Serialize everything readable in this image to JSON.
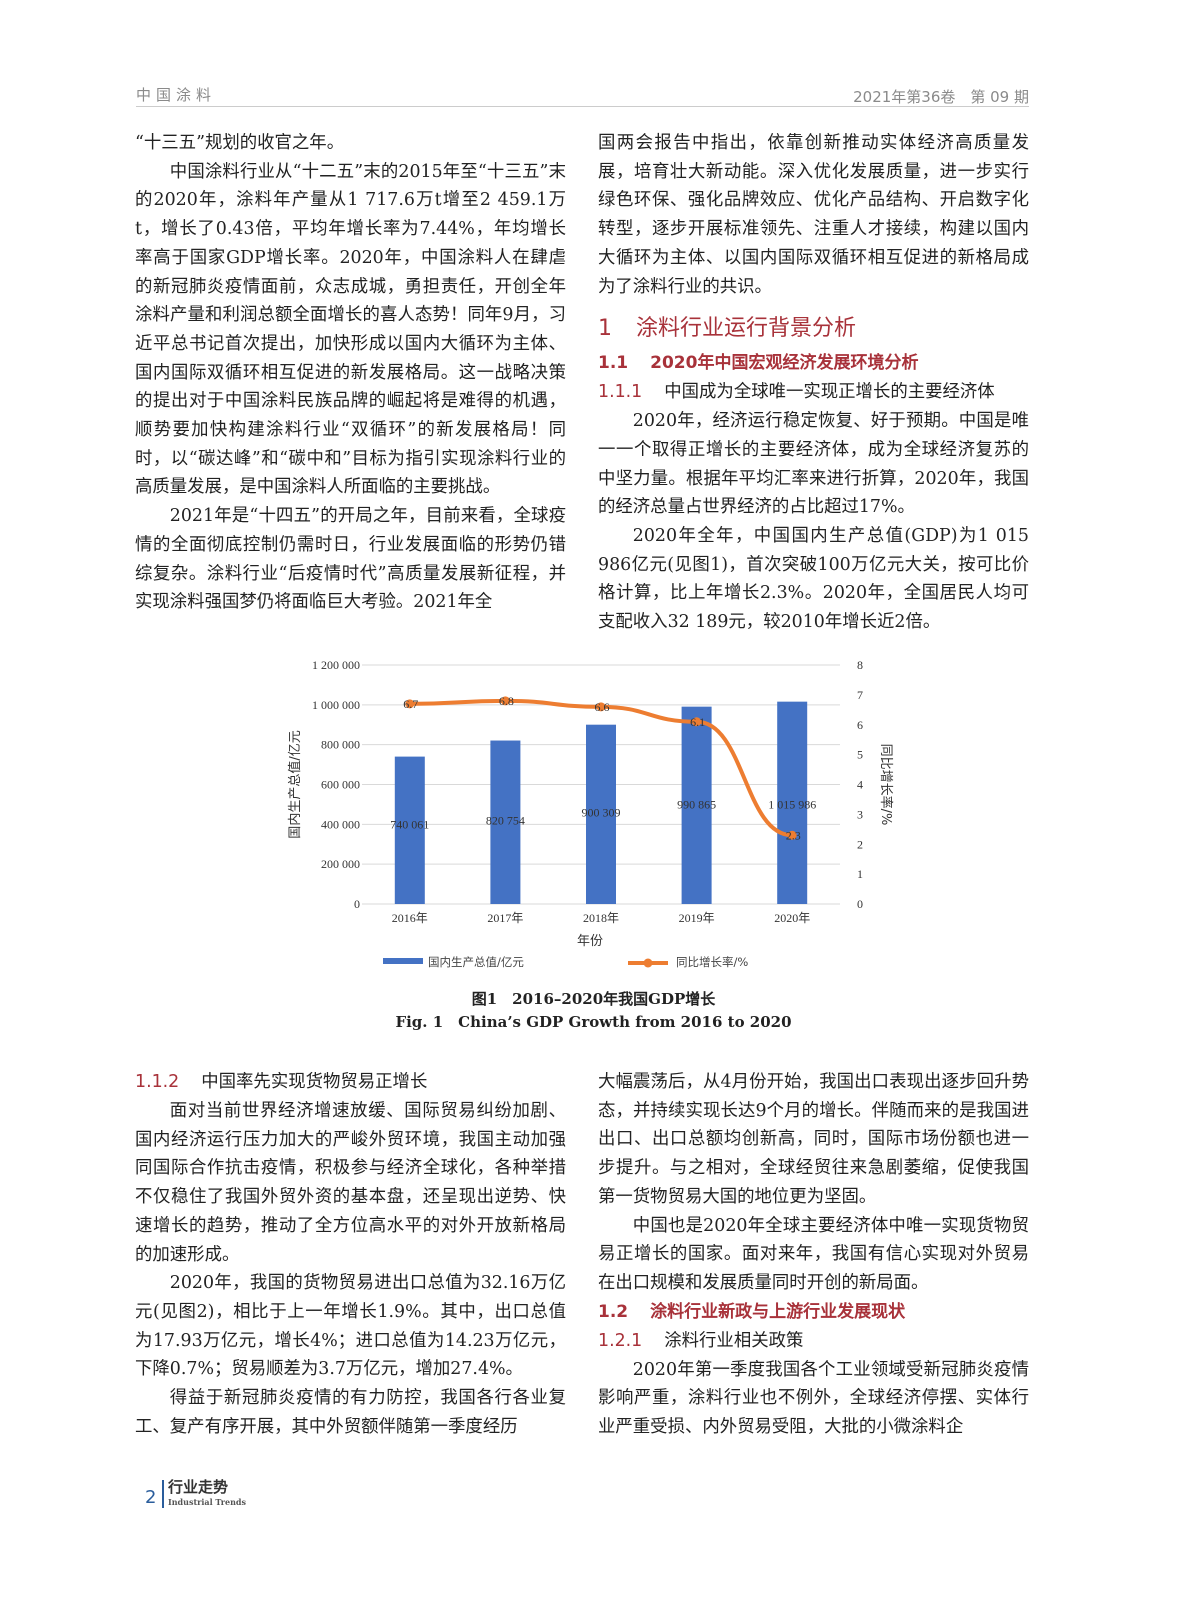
{
  "header": {
    "journal": "中国涂料",
    "issue": "2021年第36卷　第 09 期"
  },
  "top_left": [
    {
      "indent": false,
      "text": "“十三五”规划的收官之年。"
    },
    {
      "indent": true,
      "text": "中国涂料行业从“十二五”末的2015年至“十三五”末的2020年，涂料年产量从1 717.6万t增至2 459.1万t，增长了0.43倍，平均年增长率为7.44%，年均增长率高于国家GDP增长率。2020年，中国涂料人在肆虐的新冠肺炎疫情面前，众志成城，勇担责任，开创全年涂料产量和利润总额全面增长的喜人态势！同年9月，习近平总书记首次提出，加快形成以国内大循环为主体、国内国际双循环相互促进的新发展格局。这一战略决策的提出对于中国涂料民族品牌的崛起将是难得的机遇，顺势要加快构建涂料行业“双循环”的新发展格局！同时，以“碳达峰”和“碳中和”目标为指引实现涂料行业的高质量发展，是中国涂料人所面临的主要挑战。"
    },
    {
      "indent": true,
      "text": "2021年是“十四五”的开局之年，目前来看，全球疫情的全面彻底控制仍需时日，行业发展面临的形势仍错综复杂。涂料行业“后疫情时代”高质量发展新征程，并实现涂料强国梦仍将面临巨大考验。2021年全"
    }
  ],
  "top_right": {
    "p0": "国两会报告中指出，依靠创新推动实体经济高质量发展，培育壮大新动能。深入优化发展质量，进一步实行绿色环保、强化品牌效应、优化产品结构、开启数字化转型，逐步开展标准领先、注重人才接续，构建以国内大循环为主体、以国内国际双循环相互促进的新格局成为了涂料行业的共识。",
    "h1_num": "1",
    "h1_text": "涂料行业运行背景分析",
    "h2_num": "1.1",
    "h2_text": "2020年中国宏观经济发展环境分析",
    "h3_num": "1.1.1",
    "h3_text": "中国成为全球唯一实现正增长的主要经济体",
    "p1": "2020年，经济运行稳定恢复、好于预期。中国是唯一一个取得正增长的主要经济体，成为全球经济复苏的中坚力量。根据年平均汇率来进行折算，2020年，我国的经济总量占世界经济的占比超过17%。",
    "p2": "2020年全年，中国国内生产总值(GDP)为1 015 986亿元(见图1)，首次突破100万亿元大关，按可比价格计算，比上年增长2.3%。2020年，全国居民人均可支配收入32 189元，较2010年增长近2倍。"
  },
  "chart_data": {
    "type": "bar+line",
    "categories": [
      "2016年",
      "2017年",
      "2018年",
      "2019年",
      "2020年"
    ],
    "series": [
      {
        "name": "国内生产总值/亿元",
        "type": "bar",
        "axis": "left",
        "color": "#4472c4",
        "values": [
          740061,
          820754,
          900309,
          990865,
          1015986
        ],
        "labels": [
          "740 061",
          "820 754",
          "900 309",
          "990 865",
          "1 015 986"
        ]
      },
      {
        "name": "同比增长率/%",
        "type": "line",
        "axis": "right",
        "color": "#ed7d31",
        "values": [
          6.7,
          6.8,
          6.6,
          6.1,
          2.3
        ]
      }
    ],
    "xlabel": "年份",
    "ylabel": "国内生产总值/亿元",
    "y2label": "同比增长率/%",
    "ylim": [
      0,
      1200000
    ],
    "y2lim": [
      0,
      8
    ],
    "yticks": [
      "0",
      "200 000",
      "400 000",
      "600 000",
      "800 000",
      "1 000 000",
      "1 200 000"
    ],
    "y2ticks": [
      "0",
      "1",
      "2",
      "3",
      "4",
      "5",
      "6",
      "7",
      "8"
    ],
    "grid": true,
    "legend": "bottom"
  },
  "caption": {
    "cn": "图1　2016–2020年我国GDP增长",
    "en": "Fig. 1　China’s GDP Growth from 2016 to 2020"
  },
  "bottom_left": {
    "h3_num": "1.1.2",
    "h3_text": "中国率先实现货物贸易正增长",
    "p1": "面对当前世界经济增速放缓、国际贸易纠纷加剧、国内经济运行压力加大的严峻外贸环境，我国主动加强同国际合作抗击疫情，积极参与经济全球化，各种举措不仅稳住了我国外贸外资的基本盘，还呈现出逆势、快速增长的趋势，推动了全方位高水平的对外开放新格局的加速形成。",
    "p2": "2020年，我国的货物贸易进出口总值为32.16万亿元(见图2)，相比于上一年增长1.9%。其中，出口总值为17.93万亿元，增长4%；进口总值为14.23万亿元，下降0.7%；贸易顺差为3.7万亿元，增加27.4%。",
    "p3": "得益于新冠肺炎疫情的有力防控，我国各行各业复工、复产有序开展，其中外贸额伴随第一季度经历"
  },
  "bottom_right": {
    "p0": "大幅震荡后，从4月份开始，我国出口表现出逐步回升势态，并持续实现长达9个月的增长。伴随而来的是我国进出口、出口总额均创新高，同时，国际市场份额也进一步提升。与之相对，全球经贸往来急剧萎缩，促使我国第一货物贸易大国的地位更为坚固。",
    "p1": "中国也是2020年全球主要经济体中唯一实现货物贸易正增长的国家。面对来年，我国有信心实现对外贸易在出口规模和发展质量同时开创的新局面。",
    "h2_num": "1.2",
    "h2_text": "涂料行业新政与上游行业发展现状",
    "h3_num": "1.2.1",
    "h3_text": "涂料行业相关政策",
    "p2": "2020年第一季度我国各个工业领域受新冠肺炎疫情影响严重，涂料行业也不例外，全球经济停摆、实体行业严重受损、内外贸易受阻，大批的小微涂料企"
  },
  "footer": {
    "page": "2",
    "section": "行业走势",
    "section_en": "Industrial Trends"
  }
}
